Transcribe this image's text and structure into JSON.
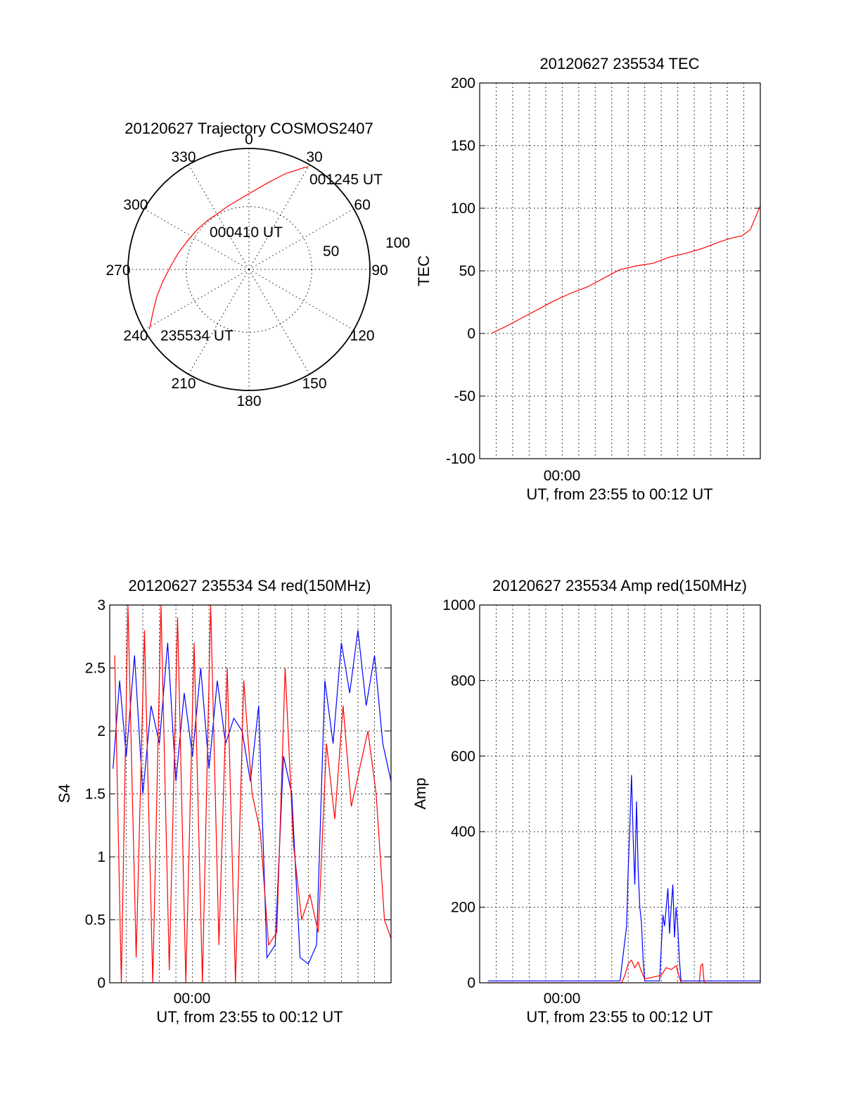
{
  "colors": {
    "red": "#ff0000",
    "blue": "#0000ff",
    "axis": "#000000",
    "background": "#ffffff"
  },
  "chart_data": [
    {
      "type": "polar",
      "title": "20120627 Trajectory COSMOS2407",
      "angle_labels": [
        "0",
        "30",
        "60",
        "90",
        "120",
        "150",
        "180",
        "210",
        "240",
        "270",
        "300",
        "330"
      ],
      "radial_labels": [
        "50",
        "100"
      ],
      "rlim": [
        0,
        100
      ],
      "grid": true,
      "trajectory": {
        "color": "#ff0000",
        "points": [
          {
            "az": 239,
            "r": 96
          },
          {
            "az": 245,
            "r": 88
          },
          {
            "az": 253,
            "r": 80
          },
          {
            "az": 262,
            "r": 72
          },
          {
            "az": 272,
            "r": 65
          },
          {
            "az": 283,
            "r": 60
          },
          {
            "az": 295,
            "r": 56
          },
          {
            "az": 308,
            "r": 54
          },
          {
            "az": 320,
            "r": 53
          },
          {
            "az": 331,
            "r": 53
          },
          {
            "az": 341,
            "r": 55
          },
          {
            "az": 351,
            "r": 58
          },
          {
            "az": 359,
            "r": 62
          },
          {
            "az": 6,
            "r": 67
          },
          {
            "az": 12,
            "r": 73
          },
          {
            "az": 17,
            "r": 79
          },
          {
            "az": 21,
            "r": 85
          },
          {
            "az": 25,
            "r": 90
          },
          {
            "az": 28,
            "r": 95
          },
          {
            "az": 30,
            "r": 98
          }
        ]
      },
      "annotations": [
        "001245 UT",
        "000410 UT",
        "235534 UT"
      ]
    },
    {
      "type": "line",
      "title": "20120627 235534 TEC",
      "xlabel": "UT, from 23:55 to 00:12 UT",
      "ylabel": "TEC",
      "xtick_label": "00:00",
      "xlim_minutes": [
        0,
        17
      ],
      "ylim": [
        -100,
        200
      ],
      "yticks": [
        -100,
        -50,
        0,
        50,
        100,
        150,
        200
      ],
      "grid": true,
      "series": [
        {
          "color": "#ff0000",
          "x_minutes": [
            0.7,
            1.5,
            2.5,
            3.5,
            4.5,
            5.5,
            6.5,
            7.5,
            8.5,
            9.5,
            10.5,
            11.5,
            12.5,
            13.5,
            14.5,
            15.2,
            15.9,
            16.4,
            17.0
          ],
          "values": [
            0,
            5,
            12,
            19,
            26,
            32,
            37,
            44,
            51,
            54,
            56,
            61,
            64,
            68,
            73,
            76,
            78,
            83,
            102
          ]
        }
      ]
    },
    {
      "type": "line",
      "title": "20120627 235534 S4 red(150MHz)",
      "xlabel": "UT, from 23:55 to 00:12 UT",
      "ylabel": "S4",
      "xtick_label": "00:00",
      "xlim_minutes": [
        0,
        17
      ],
      "ylim": [
        0,
        3
      ],
      "yticks": [
        0,
        0.5,
        1,
        1.5,
        2,
        2.5,
        3
      ],
      "grid": true,
      "series": [
        {
          "color": "#0000ff",
          "x_minutes": [
            0.2,
            0.6,
            1.0,
            1.5,
            2.0,
            2.5,
            3.0,
            3.5,
            4.0,
            4.5,
            5.0,
            5.5,
            6.0,
            6.5,
            7.0,
            7.5,
            8.0,
            8.5,
            9.0,
            9.5,
            10.0,
            10.5,
            11.0,
            11.5,
            12.0,
            12.5,
            13.0,
            13.5,
            14.0,
            14.5,
            15.0,
            15.5,
            16.0,
            16.5,
            17.0
          ],
          "values": [
            1.7,
            2.4,
            1.8,
            2.6,
            1.5,
            2.2,
            1.9,
            2.7,
            1.6,
            2.3,
            1.8,
            2.5,
            1.7,
            2.4,
            1.9,
            2.1,
            2.0,
            1.6,
            2.2,
            0.2,
            0.3,
            1.8,
            1.5,
            0.2,
            0.15,
            0.3,
            2.4,
            1.9,
            2.7,
            2.3,
            2.8,
            2.2,
            2.6,
            1.9,
            1.6
          ]
        },
        {
          "color": "#ff0000",
          "x_minutes": [
            0.3,
            0.7,
            1.1,
            1.6,
            2.1,
            2.6,
            3.1,
            3.6,
            4.1,
            4.6,
            5.1,
            5.6,
            6.1,
            6.6,
            7.1,
            7.6,
            8.1,
            8.6,
            9.1,
            9.6,
            10.1,
            10.6,
            11.1,
            11.6,
            12.1,
            12.6,
            13.1,
            13.6,
            14.1,
            14.6,
            15.1,
            15.6,
            16.1,
            16.6,
            17.0
          ],
          "values": [
            2.6,
            0.0,
            3.0,
            0.2,
            2.8,
            0.0,
            3.0,
            0.1,
            2.9,
            0.0,
            2.7,
            0.0,
            3.0,
            0.3,
            2.5,
            0.0,
            2.4,
            1.5,
            1.2,
            0.3,
            0.4,
            2.5,
            1.1,
            0.5,
            0.7,
            0.4,
            1.9,
            1.3,
            2.2,
            1.4,
            1.7,
            2.0,
            1.5,
            0.5,
            0.35
          ]
        }
      ]
    },
    {
      "type": "line",
      "title": "20120627 235534 Amp red(150MHz)",
      "xlabel": "UT, from 23:55 to 00:12 UT",
      "ylabel": "Amp",
      "xtick_label": "00:00",
      "xlim_minutes": [
        0,
        17
      ],
      "ylim": [
        0,
        1000
      ],
      "yticks": [
        0,
        200,
        400,
        600,
        800,
        1000
      ],
      "grid": true,
      "series": [
        {
          "color": "#0000ff",
          "x_minutes": [
            0.5,
            4.0,
            8.5,
            8.9,
            9.0,
            9.1,
            9.2,
            9.3,
            9.4,
            9.5,
            9.6,
            9.7,
            9.8,
            9.9,
            10.0,
            10.5,
            10.9,
            11.1,
            11.2,
            11.4,
            11.5,
            11.6,
            11.7,
            11.8,
            11.9,
            12.0,
            12.1,
            12.2,
            12.5,
            14.0,
            17.0
          ],
          "values": [
            5,
            5,
            5,
            150,
            300,
            420,
            550,
            380,
            260,
            480,
            300,
            200,
            160,
            60,
            5,
            5,
            5,
            180,
            150,
            250,
            130,
            200,
            260,
            120,
            200,
            150,
            60,
            5,
            5,
            5,
            5
          ]
        },
        {
          "color": "#ff0000",
          "x_minutes": [
            0.5,
            8.6,
            8.8,
            9.0,
            9.2,
            9.4,
            9.6,
            9.8,
            10.0,
            10.5,
            11.0,
            11.3,
            11.6,
            11.9,
            12.1,
            12.2,
            13.3,
            13.4,
            13.5,
            13.6,
            17.0
          ],
          "values": [
            0,
            0,
            20,
            50,
            60,
            40,
            55,
            30,
            10,
            15,
            20,
            40,
            35,
            45,
            15,
            0,
            0,
            45,
            50,
            0,
            0
          ]
        }
      ]
    }
  ]
}
